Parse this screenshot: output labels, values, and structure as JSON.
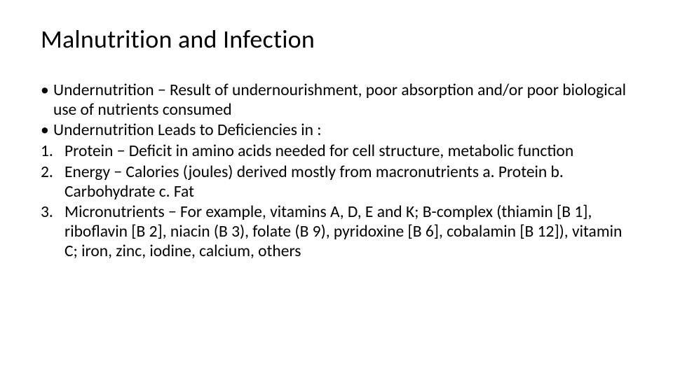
{
  "slide": {
    "title": "Malnutrition and Infection",
    "bullets": [
      "Undernutrition − Result of undernourishment, poor absorption and/or poor biological use of nutrients consumed",
      "Undernutrition Leads to Deficiencies in :"
    ],
    "numbered": [
      {
        "n": "1.",
        "text": "Protein − Deficit in amino acids needed for cell structure, metabolic function"
      },
      {
        "n": "2.",
        "text": " Energy − Calories (joules) derived mostly from macronutrients       a. Protein b. Carbohydrate c. Fat"
      },
      {
        "n": "3.",
        "text": " Micronutrients − For example, vitamins A, D, E and K; B-complex (thiamin [B 1], riboflavin [B 2], niacin (B 3), folate (B 9), pyridoxine [B 6], cobalamin [B 12]), vitamin C; iron, zinc, iodine, calcium, others"
      }
    ],
    "style": {
      "background_color": "#ffffff",
      "text_color": "#000000",
      "title_fontsize": 36,
      "body_fontsize": 23.5,
      "font_family": "Calibri",
      "line_height": 1.18
    }
  }
}
